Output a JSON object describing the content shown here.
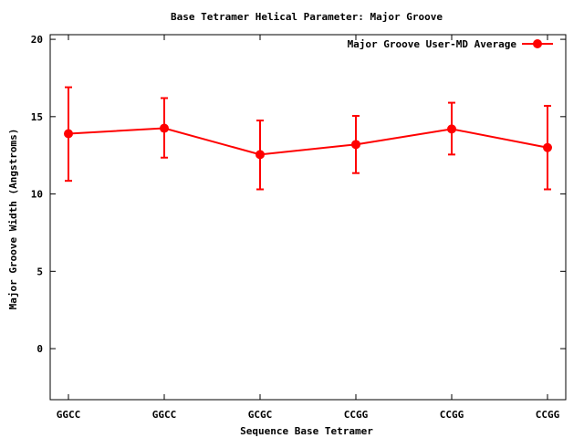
{
  "chart_data": {
    "type": "line",
    "title": "Base Tetramer Helical Parameter: Major Groove",
    "xlabel": "Sequence Base Tetramer",
    "ylabel": "Major Groove Width (Angstroms)",
    "categories": [
      "GGCC",
      "GGCC",
      "GCGC",
      "CCGG",
      "CCGG",
      "CCGG"
    ],
    "ylim": [
      -3.3,
      20.3
    ],
    "yticks": [
      0,
      5,
      10,
      15,
      20
    ],
    "legend_position": "top-right",
    "series": [
      {
        "name": "Major Groove User-MD Average",
        "color": "#ff0000",
        "values": [
          13.9,
          14.25,
          12.55,
          13.2,
          14.2,
          13.0
        ],
        "err_low": [
          10.85,
          12.35,
          10.3,
          11.35,
          12.55,
          10.3
        ],
        "err_high": [
          16.9,
          16.2,
          14.75,
          15.05,
          15.9,
          15.7
        ]
      }
    ]
  }
}
